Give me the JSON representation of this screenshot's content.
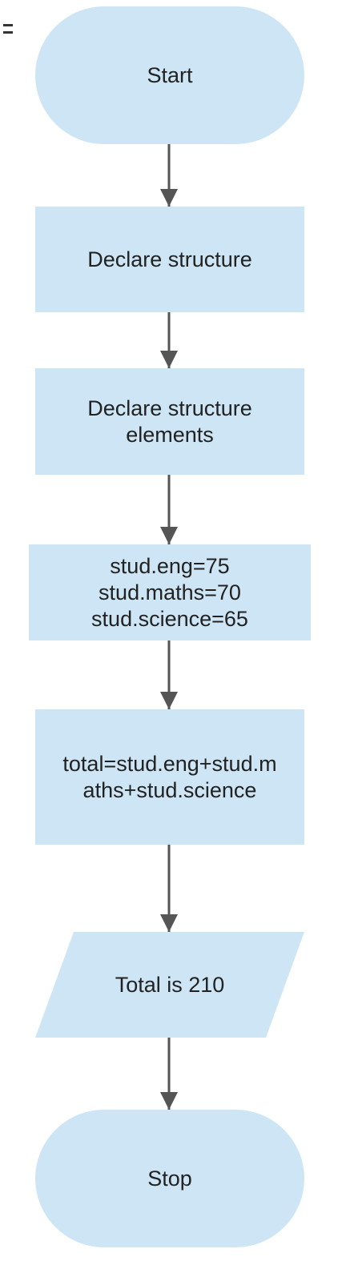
{
  "flowchart": {
    "start": "Start",
    "declare_structure": "Declare structure",
    "declare_elements": "Declare structure\nelements",
    "assign_values": "stud.eng=75\nstud.maths=70\nstud.science=65",
    "compute_total": "total=stud.eng+stud.m\naths+stud.science",
    "output": "Total is 210",
    "stop": "Stop"
  },
  "colors": {
    "node_fill": "#cde5f4",
    "arrow": "#555555",
    "text": "#222222"
  }
}
